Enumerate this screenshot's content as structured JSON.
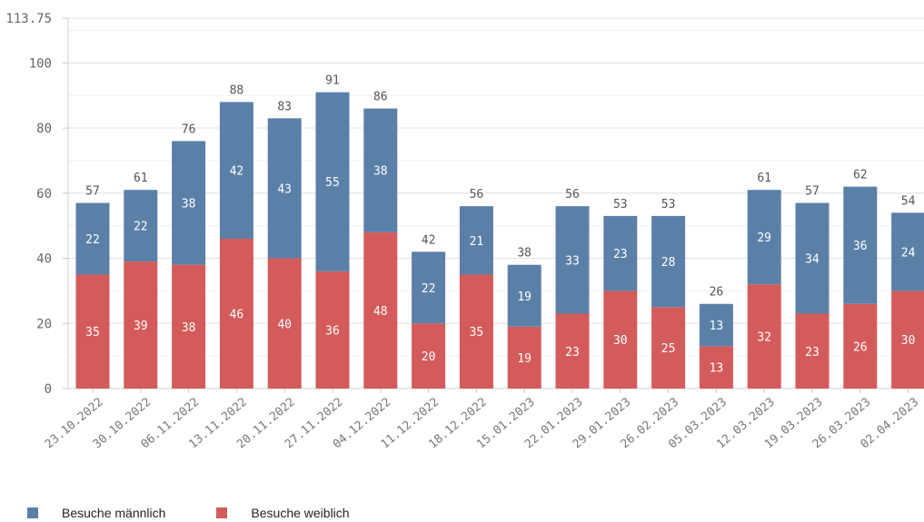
{
  "chart_data": {
    "type": "bar",
    "stacked": true,
    "categories": [
      "23.10.2022",
      "30.10.2022",
      "06.11.2022",
      "13.11.2022",
      "20.11.2022",
      "27.11.2022",
      "04.12.2022",
      "11.12.2022",
      "18.12.2022",
      "15.01.2023",
      "22.01.2023",
      "29.01.2023",
      "26.02.2023",
      "05.03.2023",
      "12.03.2023",
      "19.03.2023",
      "26.03.2023",
      "02.04.2023"
    ],
    "series": [
      {
        "name": "Besuche weiblich",
        "color": "#d45b5b",
        "values": [
          35,
          39,
          38,
          46,
          40,
          36,
          48,
          20,
          35,
          19,
          23,
          30,
          25,
          13,
          32,
          23,
          26,
          30
        ]
      },
      {
        "name": "Besuche männlich",
        "color": "#5b80a8",
        "values": [
          22,
          22,
          38,
          42,
          43,
          55,
          38,
          22,
          21,
          19,
          33,
          23,
          28,
          13,
          29,
          34,
          36,
          24
        ]
      }
    ],
    "totals": [
      57,
      61,
      76,
      88,
      83,
      91,
      86,
      42,
      56,
      38,
      56,
      53,
      53,
      26,
      61,
      57,
      62,
      54
    ],
    "ylim": [
      0,
      113.75
    ],
    "yticks": [
      0,
      20,
      40,
      60,
      80,
      100,
      113.75
    ],
    "grid": true,
    "legend_position": "bottom-left"
  },
  "legend": {
    "male_label": "Besuche männlich",
    "female_label": "Besuche weiblich",
    "male_color": "#5b80a8",
    "female_color": "#d45b5b"
  }
}
